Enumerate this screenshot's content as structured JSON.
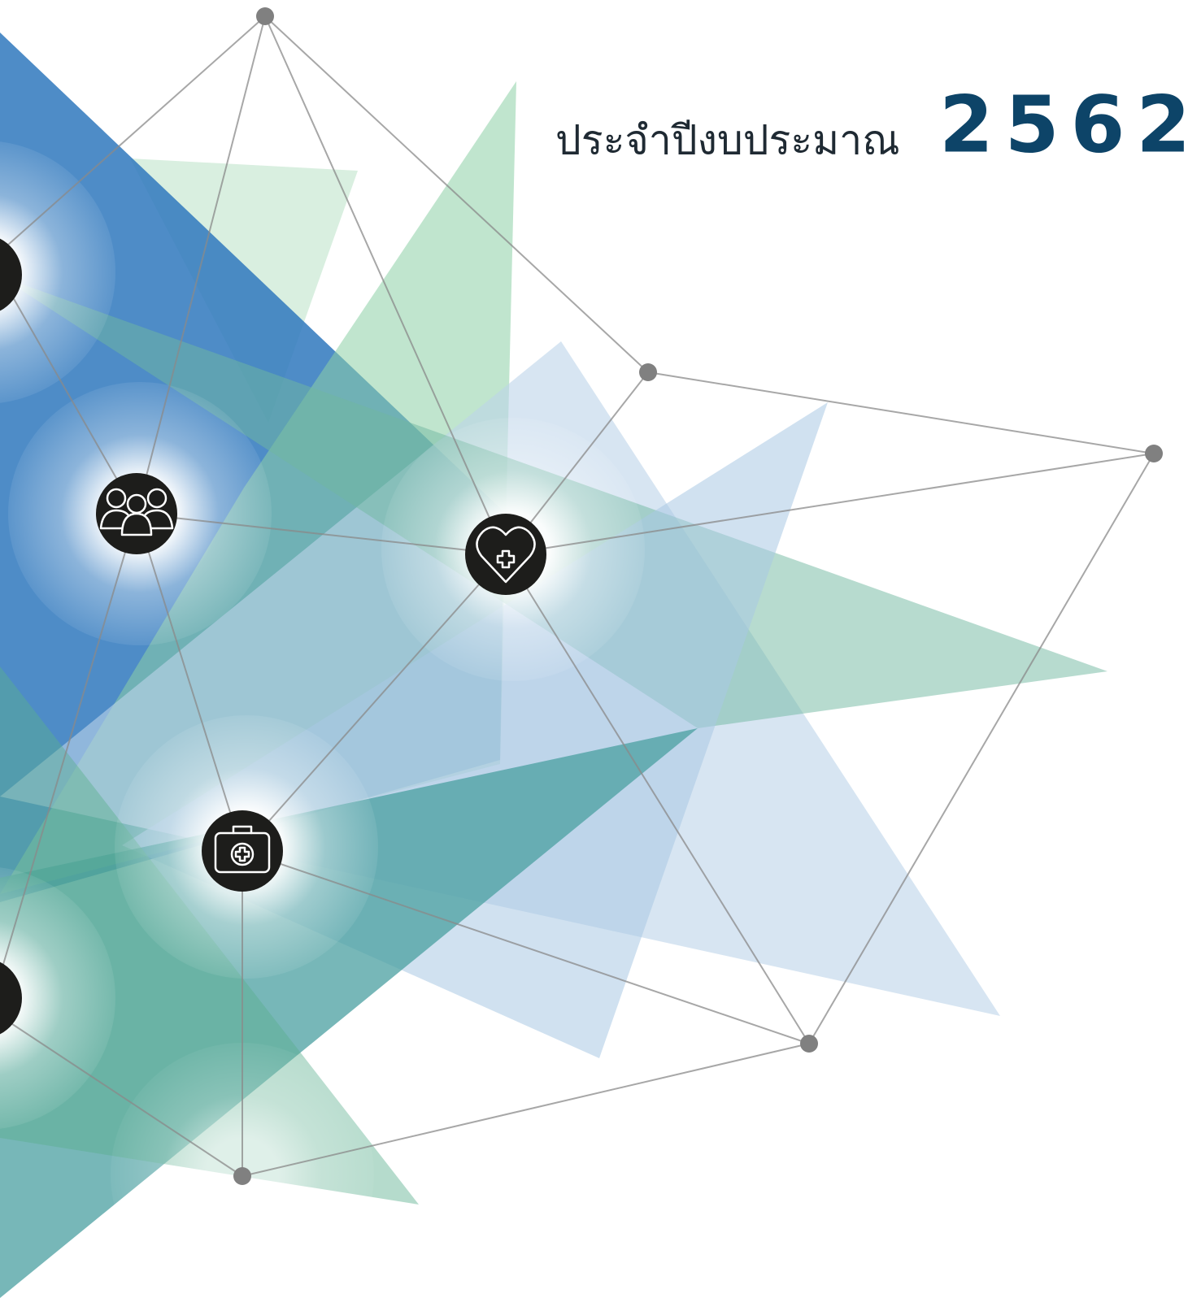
{
  "title": {
    "label": "ประจำปีงบประมาณ",
    "year": "2562"
  }
}
